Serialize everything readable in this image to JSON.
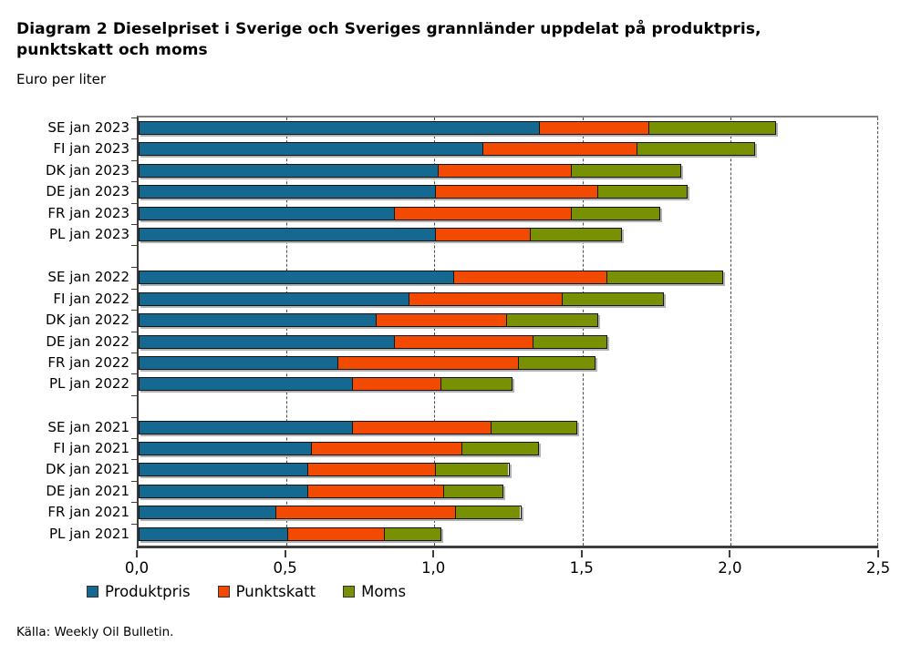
{
  "title": "Diagram 2 Dieselpriset i Sverige och Sveriges grannländer uppdelat på produktpris, punktskatt och moms",
  "subtitle": "Euro per liter",
  "source": "Källa: Weekly Oil Bulletin.",
  "colors": {
    "produktpris": "#15688f",
    "punktskatt": "#f24a00",
    "moms": "#779103",
    "axis": "#3d3d3d",
    "gridline": "#4d4d4d"
  },
  "legend": [
    {
      "name": "produktpris",
      "label": "Produktpris",
      "color": "#15688f"
    },
    {
      "name": "punktskatt",
      "label": "Punktskatt",
      "color": "#f24a00"
    },
    {
      "name": "moms",
      "label": "Moms",
      "color": "#779103"
    }
  ],
  "x_axis": {
    "tick_labels": [
      "0,0",
      "0,5",
      "1,0",
      "1,5",
      "2,0",
      "2,5"
    ],
    "tick_values": [
      0.0,
      0.5,
      1.0,
      1.5,
      2.0,
      2.5
    ]
  },
  "chart_data": {
    "type": "bar",
    "orientation": "horizontal",
    "stacked": true,
    "title": "Diagram 2 Dieselpriset i Sverige och Sveriges grannländer uppdelat på produktpris, punktskatt och moms",
    "xlabel": "Euro per liter",
    "ylabel": "",
    "xlim": [
      0,
      2.5
    ],
    "grid": "dashed-vertical",
    "legend_position": "bottom",
    "group_breaks": [
      6,
      12
    ],
    "categories": [
      "SE jan 2023",
      "FI jan 2023",
      "DK jan 2023",
      "DE jan 2023",
      "FR jan 2023",
      "PL jan 2023",
      "SE jan 2022",
      "FI jan 2022",
      "DK jan 2022",
      "DE jan 2022",
      "FR jan 2022",
      "PL jan 2022",
      "SE jan 2021",
      "FI jan 2021",
      "DK jan 2021",
      "DE jan 2021",
      "FR jan 2021",
      "PL jan 2021"
    ],
    "series": [
      {
        "name": "Produktpris",
        "color": "#15688f",
        "values": [
          1.35,
          1.16,
          1.01,
          1.0,
          0.86,
          1.0,
          1.06,
          0.91,
          0.8,
          0.86,
          0.67,
          0.72,
          0.72,
          0.58,
          0.57,
          0.57,
          0.46,
          0.5
        ]
      },
      {
        "name": "Punktskatt",
        "color": "#f24a00",
        "values": [
          0.37,
          0.52,
          0.45,
          0.55,
          0.6,
          0.32,
          0.52,
          0.52,
          0.44,
          0.47,
          0.61,
          0.3,
          0.47,
          0.51,
          0.43,
          0.46,
          0.61,
          0.33
        ]
      },
      {
        "name": "Moms",
        "color": "#779103",
        "values": [
          0.43,
          0.4,
          0.37,
          0.3,
          0.3,
          0.31,
          0.39,
          0.34,
          0.31,
          0.25,
          0.26,
          0.24,
          0.29,
          0.26,
          0.25,
          0.2,
          0.22,
          0.19
        ]
      }
    ],
    "totals": [
      2.15,
      2.08,
      1.83,
      1.85,
      1.76,
      1.63,
      1.97,
      1.77,
      1.55,
      1.58,
      1.54,
      1.26,
      1.48,
      1.35,
      1.25,
      1.23,
      1.29,
      1.02
    ]
  }
}
